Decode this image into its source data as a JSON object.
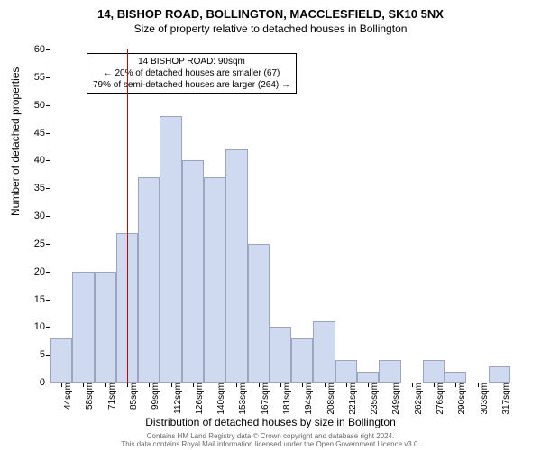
{
  "title": "14, BISHOP ROAD, BOLLINGTON, MACCLESFIELD, SK10 5NX",
  "subtitle": "Size of property relative to detached houses in Bollington",
  "chart": {
    "type": "histogram",
    "ylabel": "Number of detached properties",
    "xlabel": "Distribution of detached houses by size in Bollington",
    "ylim": [
      0,
      60
    ],
    "ytick_step": 5,
    "bar_color": "#cfd9ef",
    "bar_border_color": "#9aa5c0",
    "background_color": "#ffffff",
    "marker_color": "#cc0000",
    "marker_x_index": 3.5,
    "categories": [
      "44sqm",
      "58sqm",
      "71sqm",
      "85sqm",
      "99sqm",
      "112sqm",
      "126sqm",
      "140sqm",
      "153sqm",
      "167sqm",
      "181sqm",
      "194sqm",
      "208sqm",
      "221sqm",
      "235sqm",
      "249sqm",
      "262sqm",
      "276sqm",
      "290sqm",
      "303sqm",
      "317sqm"
    ],
    "values": [
      8,
      20,
      20,
      27,
      37,
      48,
      40,
      37,
      42,
      25,
      10,
      8,
      11,
      4,
      2,
      4,
      0,
      4,
      2,
      0,
      3
    ]
  },
  "annotation": {
    "line1": "14 BISHOP ROAD: 90sqm",
    "line2": "← 20% of detached houses are smaller (67)",
    "line3": "79% of semi-detached houses are larger (264) →"
  },
  "footer": {
    "line1": "Contains HM Land Registry data © Crown copyright and database right 2024.",
    "line2": "This data contains Royal Mail information licensed under the Open Government Licence v3.0."
  }
}
